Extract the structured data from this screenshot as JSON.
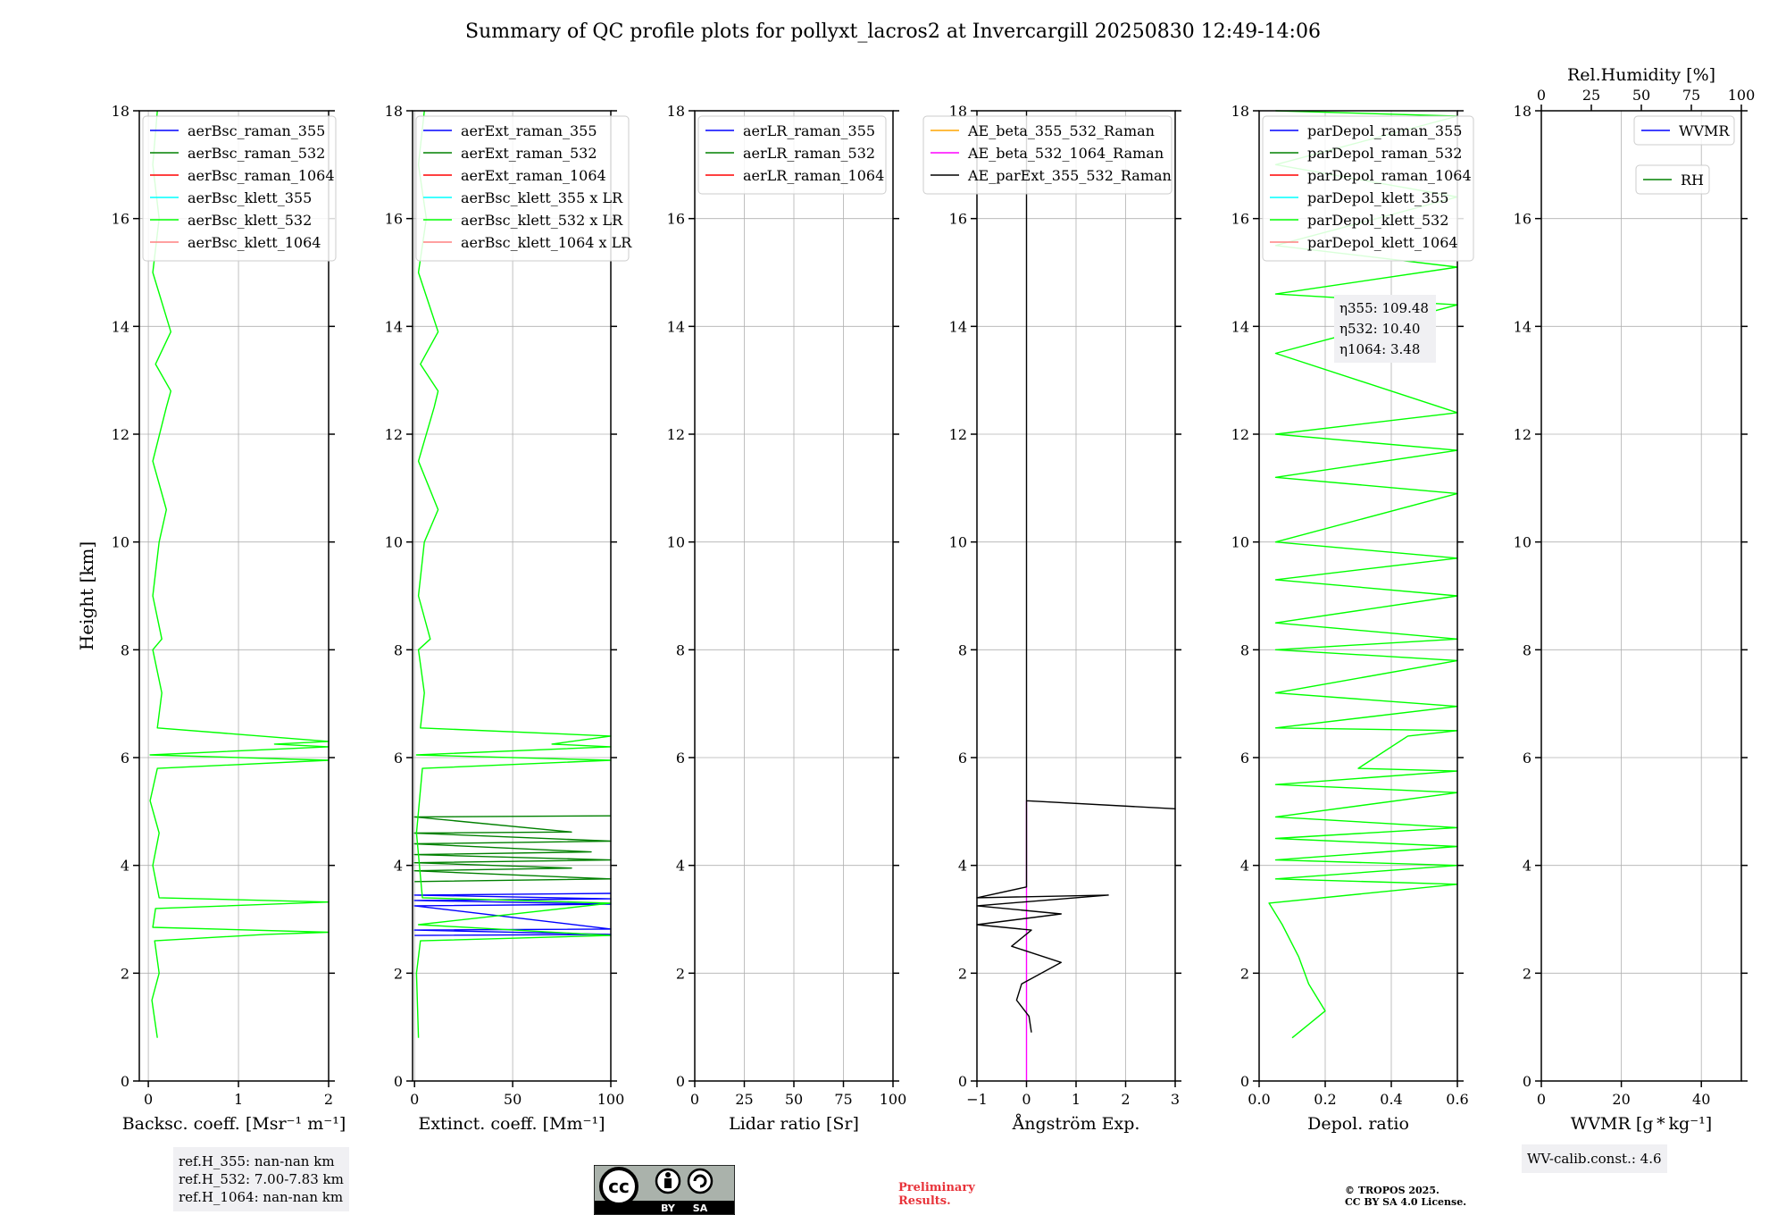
{
  "title": "Summary of QC profile plots for pollyxt_lacros2 at Invercargill 20250830 12:49-14:06",
  "colors": {
    "blue": "#0000ff",
    "green": "#008000",
    "red": "#ff0000",
    "cyan": "#00ffff",
    "lime": "#00ff00",
    "pink": "#ff8080",
    "orange": "#ffa500",
    "magenta": "#ff00ff",
    "black": "#000000"
  },
  "chart_data": [
    {
      "type": "line",
      "xlabel": "Backsc. coeff. [Msr⁻¹ m⁻¹]",
      "ylabel": "Height [km]",
      "xlim": [
        -0.1,
        2
      ],
      "ylim": [
        0,
        18
      ],
      "xticks": [
        "0",
        "1",
        "2"
      ],
      "yticks": [
        "0",
        "2",
        "4",
        "6",
        "8",
        "10",
        "12",
        "14",
        "16",
        "18"
      ],
      "legend": [
        "aerBsc_raman_355",
        "aerBsc_raman_532",
        "aerBsc_raman_1064",
        "aerBsc_klett_355",
        "aerBsc_klett_532",
        "aerBsc_klett_1064"
      ],
      "series": [
        {
          "name": "aerBsc_klett_532",
          "color": "lime",
          "points": [
            [
              0.1,
              0.8
            ],
            [
              0.04,
              1.5
            ],
            [
              0.12,
              2.0
            ],
            [
              0.07,
              2.6
            ],
            [
              1.3,
              2.72
            ],
            [
              2.0,
              2.76
            ],
            [
              0.05,
              2.85
            ],
            [
              0.08,
              3.2
            ],
            [
              2.0,
              3.32
            ],
            [
              0.12,
              3.4
            ],
            [
              0.05,
              4.0
            ],
            [
              0.12,
              4.6
            ],
            [
              0.02,
              5.2
            ],
            [
              0.1,
              5.8
            ],
            [
              2.0,
              5.95
            ],
            [
              0.02,
              6.05
            ],
            [
              2.0,
              6.2
            ],
            [
              1.4,
              6.25
            ],
            [
              2.0,
              6.3
            ],
            [
              0.1,
              6.55
            ],
            [
              0.15,
              7.2
            ],
            [
              0.05,
              8.0
            ],
            [
              0.15,
              8.2
            ],
            [
              0.05,
              9.0
            ],
            [
              0.12,
              10.0
            ],
            [
              0.2,
              10.6
            ],
            [
              0.05,
              11.5
            ],
            [
              0.2,
              12.5
            ],
            [
              0.25,
              12.8
            ],
            [
              0.08,
              13.3
            ],
            [
              0.25,
              13.9
            ],
            [
              0.05,
              15.0
            ],
            [
              0.12,
              16.0
            ],
            [
              0.05,
              17.0
            ],
            [
              0.1,
              18.0
            ]
          ]
        }
      ],
      "annotation": [
        "ref.H_355: nan-nan km",
        "ref.H_532: 7.00-7.83 km",
        "ref.H_1064: nan-nan km"
      ]
    },
    {
      "type": "line",
      "xlabel": "Extinct. coeff. [Mm⁻¹]",
      "xlim": [
        -1,
        100
      ],
      "ylim": [
        0,
        18
      ],
      "xticks": [
        "0",
        "50",
        "100"
      ],
      "yticks": [
        "0",
        "2",
        "4",
        "6",
        "8",
        "10",
        "12",
        "14",
        "16",
        "18"
      ],
      "legend": [
        "aerExt_raman_355",
        "aerExt_raman_532",
        "aerExt_raman_1064",
        "aerBsc_klett_355 x LR",
        "aerBsc_klett_532 x LR",
        "aerBsc_klett_1064 x LR"
      ],
      "series": [
        {
          "name": "aerExt_raman_355",
          "color": "blue",
          "points": [
            [
              0,
              2.7
            ],
            [
              100,
              2.72
            ],
            [
              0,
              2.8
            ],
            [
              100,
              2.82
            ],
            [
              0,
              3.25
            ],
            [
              100,
              3.28
            ],
            [
              0,
              3.35
            ],
            [
              100,
              3.38
            ],
            [
              0,
              3.45
            ],
            [
              100,
              3.48
            ]
          ]
        },
        {
          "name": "aerExt_raman_532",
          "color": "green",
          "points": [
            [
              0,
              3.7
            ],
            [
              100,
              3.75
            ],
            [
              0,
              3.9
            ],
            [
              80,
              3.95
            ],
            [
              0,
              4.05
            ],
            [
              100,
              4.1
            ],
            [
              0,
              4.2
            ],
            [
              90,
              4.25
            ],
            [
              0,
              4.4
            ],
            [
              100,
              4.45
            ],
            [
              0,
              4.6
            ],
            [
              80,
              4.62
            ],
            [
              0,
              4.9
            ],
            [
              100,
              4.92
            ]
          ]
        },
        {
          "name": "aerBsc_klett_532 x LR",
          "color": "lime",
          "points": [
            [
              2,
              0.8
            ],
            [
              1,
              2.0
            ],
            [
              3,
              2.6
            ],
            [
              100,
              2.7
            ],
            [
              2,
              2.9
            ],
            [
              100,
              3.3
            ],
            [
              4,
              3.4
            ],
            [
              1,
              4.6
            ],
            [
              4,
              5.8
            ],
            [
              100,
              5.95
            ],
            [
              1,
              6.05
            ],
            [
              100,
              6.2
            ],
            [
              70,
              6.25
            ],
            [
              100,
              6.4
            ],
            [
              3,
              6.55
            ],
            [
              5,
              7.2
            ],
            [
              2,
              8.0
            ],
            [
              8,
              8.2
            ],
            [
              2,
              9.0
            ],
            [
              5,
              10.0
            ],
            [
              12,
              10.6
            ],
            [
              2,
              11.5
            ],
            [
              10,
              12.5
            ],
            [
              12,
              12.8
            ],
            [
              3,
              13.3
            ],
            [
              12,
              13.9
            ],
            [
              2,
              15.0
            ],
            [
              6,
              16.0
            ],
            [
              2,
              17.0
            ],
            [
              5,
              18.0
            ]
          ]
        }
      ]
    },
    {
      "type": "line",
      "xlabel": "Lidar ratio [Sr]",
      "xlim": [
        0,
        100
      ],
      "ylim": [
        0,
        18
      ],
      "xticks": [
        "0",
        "25",
        "50",
        "75",
        "100"
      ],
      "yticks": [
        "0",
        "2",
        "4",
        "6",
        "8",
        "10",
        "12",
        "14",
        "16",
        "18"
      ],
      "legend": [
        "aerLR_raman_355",
        "aerLR_raman_532",
        "aerLR_raman_1064"
      ],
      "series": []
    },
    {
      "type": "line",
      "xlabel": "Ångström Exp.",
      "xlim": [
        -1,
        3
      ],
      "ylim": [
        0,
        18
      ],
      "xticks": [
        "−1",
        "0",
        "1",
        "2",
        "3"
      ],
      "yticks": [
        "0",
        "2",
        "4",
        "6",
        "8",
        "10",
        "12",
        "14",
        "16",
        "18"
      ],
      "legend": [
        "AE_beta_355_532_Raman",
        "AE_beta_532_1064_Raman",
        "AE_parExt_355_532_Raman"
      ],
      "series": [
        {
          "name": "AE_beta_532_1064_Raman",
          "color": "magenta",
          "points": [
            [
              0,
              0
            ],
            [
              0,
              5.2
            ]
          ]
        },
        {
          "name": "AE_parExt_355_532_Raman",
          "color": "black",
          "points": [
            [
              0.1,
              0.9
            ],
            [
              0.05,
              1.2
            ],
            [
              -0.2,
              1.5
            ],
            [
              -0.1,
              1.8
            ],
            [
              0.7,
              2.2
            ],
            [
              -0.3,
              2.5
            ],
            [
              0.1,
              2.8
            ],
            [
              -1,
              2.9
            ],
            [
              0.7,
              3.1
            ],
            [
              -1,
              3.25
            ],
            [
              1.65,
              3.45
            ],
            [
              -1,
              3.4
            ],
            [
              0,
              3.6
            ],
            [
              0,
              5.2
            ],
            [
              3,
              5.05
            ],
            [
              0,
              5.2
            ],
            [
              0,
              18
            ]
          ]
        }
      ]
    },
    {
      "type": "line",
      "xlabel": "Depol. ratio",
      "xlim": [
        0,
        0.6
      ],
      "ylim": [
        0,
        18
      ],
      "xticks": [
        "0.0",
        "0.2",
        "0.4",
        "0.6"
      ],
      "yticks": [
        "0",
        "2",
        "4",
        "6",
        "8",
        "10",
        "12",
        "14",
        "16",
        "18"
      ],
      "legend": [
        "parDepol_raman_355",
        "parDepol_raman_532",
        "parDepol_raman_1064",
        "parDepol_klett_355",
        "parDepol_klett_532",
        "parDepol_klett_1064"
      ],
      "annotation": [
        "η355: 109.48",
        "η532: 10.40",
        "η1064: 3.48"
      ],
      "series": [
        {
          "name": "parDepol_klett_532",
          "color": "lime",
          "points": [
            [
              0.1,
              0.8
            ],
            [
              0.2,
              1.3
            ],
            [
              0.15,
              1.8
            ],
            [
              0.12,
              2.3
            ],
            [
              0.07,
              2.9
            ],
            [
              0.03,
              3.3
            ],
            [
              0.6,
              3.65
            ],
            [
              0.05,
              3.75
            ],
            [
              0.6,
              4.0
            ],
            [
              0.05,
              4.1
            ],
            [
              0.6,
              4.35
            ],
            [
              0.05,
              4.5
            ],
            [
              0.6,
              4.7
            ],
            [
              0.05,
              4.9
            ],
            [
              0.6,
              5.35
            ],
            [
              0.05,
              5.5
            ],
            [
              0.6,
              5.75
            ],
            [
              0.3,
              5.8
            ],
            [
              0.45,
              6.4
            ],
            [
              0.6,
              6.5
            ],
            [
              0.05,
              6.55
            ],
            [
              0.6,
              6.95
            ],
            [
              0.05,
              7.2
            ],
            [
              0.6,
              7.8
            ],
            [
              0.05,
              8.0
            ],
            [
              0.6,
              8.2
            ],
            [
              0.05,
              8.5
            ],
            [
              0.6,
              9.0
            ],
            [
              0.05,
              9.3
            ],
            [
              0.6,
              9.7
            ],
            [
              0.05,
              10.0
            ],
            [
              0.6,
              10.9
            ],
            [
              0.05,
              11.2
            ],
            [
              0.6,
              11.7
            ],
            [
              0.05,
              12.0
            ],
            [
              0.6,
              12.4
            ],
            [
              0.05,
              13.5
            ],
            [
              0.6,
              14.4
            ],
            [
              0.05,
              14.6
            ],
            [
              0.6,
              15.1
            ],
            [
              0.05,
              15.5
            ],
            [
              0.6,
              16.4
            ],
            [
              0.05,
              17.0
            ],
            [
              0.6,
              17.9
            ],
            [
              0.05,
              18.0
            ]
          ]
        }
      ]
    },
    {
      "type": "line",
      "xlabel": "WVMR [g * kg⁻¹]",
      "x2label": "Rel.Humidity [%]",
      "xlim": [
        0,
        50
      ],
      "ylim": [
        0,
        18
      ],
      "xticks": [
        "0",
        "20",
        "40"
      ],
      "x2ticks": [
        "0",
        "25",
        "50",
        "75",
        "100"
      ],
      "yticks": [
        "0",
        "2",
        "4",
        "6",
        "8",
        "10",
        "12",
        "14",
        "16",
        "18"
      ],
      "legend": [
        "WVMR",
        "RH"
      ],
      "annotation": [
        "WV-calib.const.: 4.6"
      ],
      "series": []
    }
  ],
  "license": {
    "line1": "© TROPOS 2025.",
    "line2": "CC BY SA 4.0 License.",
    "badge_by": "BY",
    "badge_sa": "SA",
    "badge_cc": "cc"
  },
  "prelim": {
    "line1": "Preliminary",
    "line2": "Results."
  }
}
